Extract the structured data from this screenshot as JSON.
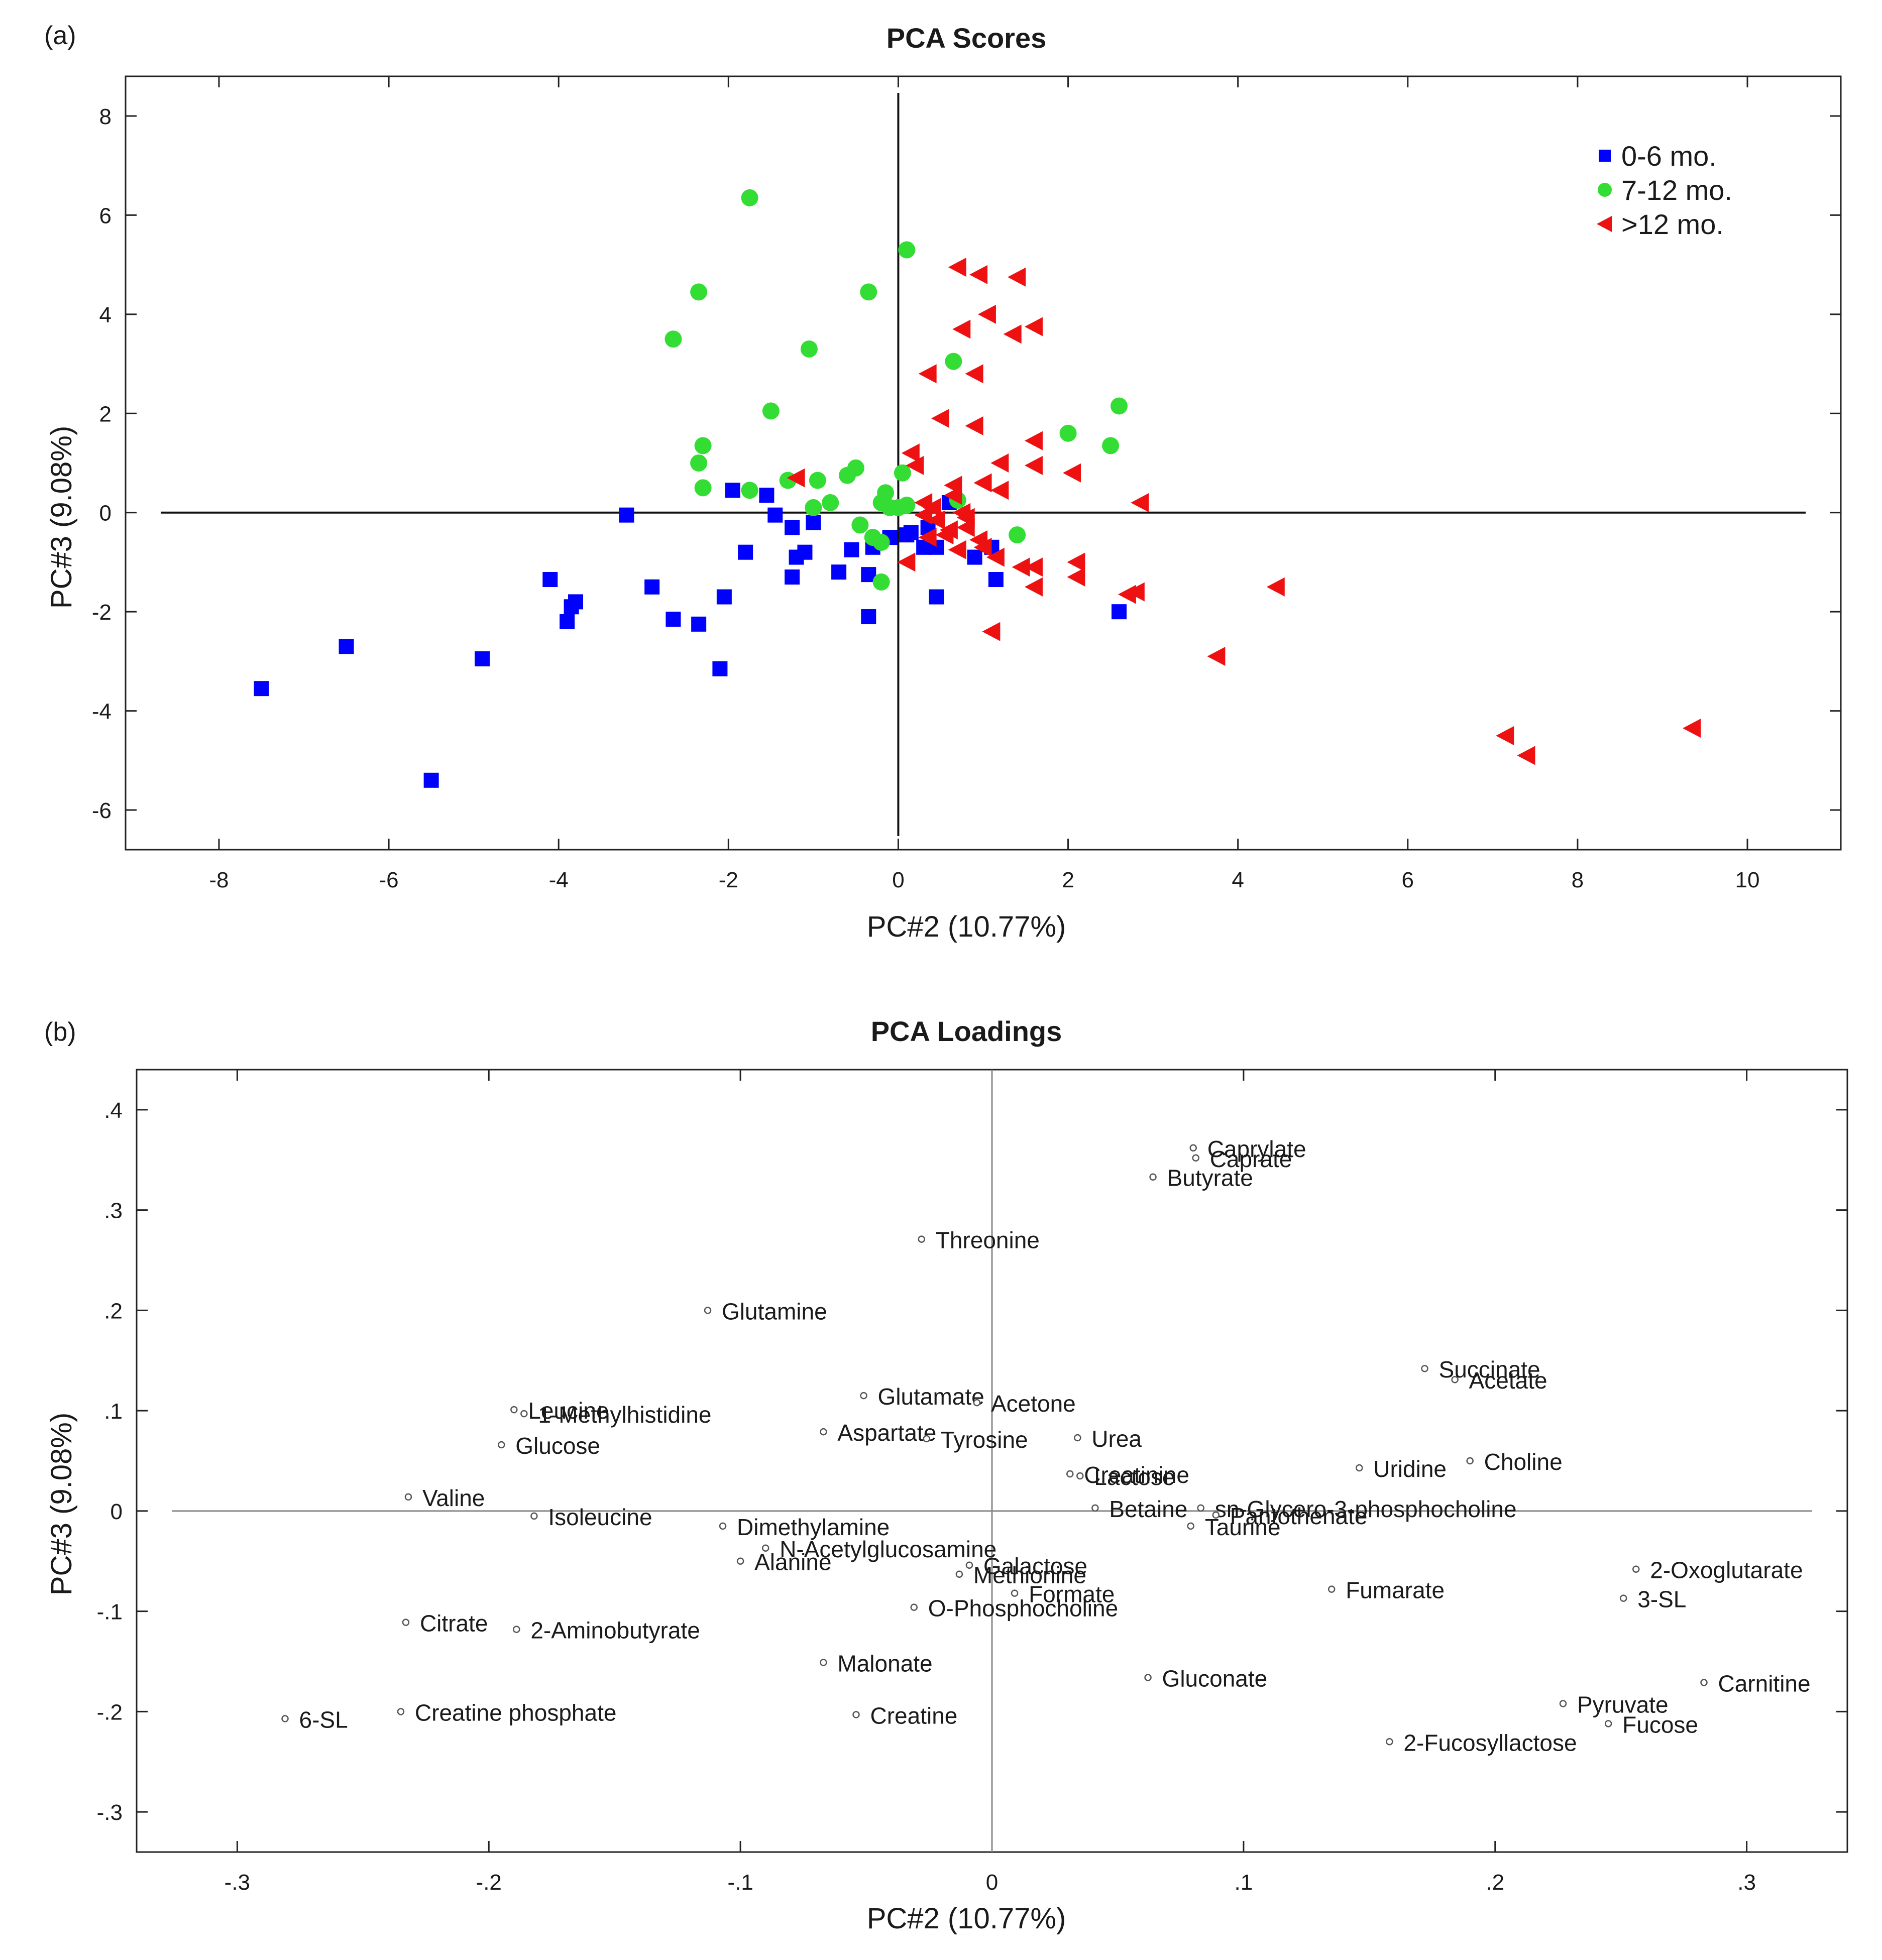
{
  "figure": {
    "panel_a_label": "(a)",
    "panel_b_label": "(b)"
  },
  "chart_data": [
    {
      "type": "scatter",
      "title": "PCA Scores",
      "xlabel": "PC#2 (10.77%)",
      "ylabel": "PC#3 (9.08%)",
      "xlim": [
        -9.1,
        11.1
      ],
      "ylim": [
        -6.8,
        8.8
      ],
      "xticks": [
        -8,
        -6,
        -4,
        -2,
        0,
        2,
        4,
        6,
        8,
        10
      ],
      "yticks": [
        -6,
        -4,
        -2,
        0,
        2,
        4,
        6,
        8
      ],
      "legend_position": "top-right",
      "series": [
        {
          "name": "0-6 mo.",
          "color": "#0000ff",
          "marker": "square",
          "points": [
            [
              -7.5,
              -3.55
            ],
            [
              -6.5,
              -2.7
            ],
            [
              -5.5,
              -5.4
            ],
            [
              -4.9,
              -2.95
            ],
            [
              -4.1,
              -1.35
            ],
            [
              -3.9,
              -2.2
            ],
            [
              -3.85,
              -1.9
            ],
            [
              -3.8,
              -1.8
            ],
            [
              -3.2,
              -0.05
            ],
            [
              -2.9,
              -1.5
            ],
            [
              -2.65,
              -2.15
            ],
            [
              -2.35,
              -2.25
            ],
            [
              -2.1,
              -3.15
            ],
            [
              -2.05,
              -1.7
            ],
            [
              -1.95,
              0.45
            ],
            [
              -1.8,
              -0.8
            ],
            [
              -1.55,
              0.35
            ],
            [
              -1.45,
              -0.05
            ],
            [
              -1.25,
              -1.3
            ],
            [
              -1.25,
              -0.3
            ],
            [
              -1.2,
              -0.9
            ],
            [
              -1.1,
              -0.8
            ],
            [
              -1.0,
              -0.2
            ],
            [
              -0.7,
              -1.2
            ],
            [
              -0.55,
              -0.75
            ],
            [
              -0.35,
              -1.25
            ],
            [
              -0.35,
              -2.1
            ],
            [
              -0.3,
              -0.7
            ],
            [
              -0.1,
              -0.5
            ],
            [
              0.1,
              -0.45
            ],
            [
              0.15,
              -0.4
            ],
            [
              0.3,
              -0.7
            ],
            [
              0.35,
              -0.3
            ],
            [
              0.45,
              -0.7
            ],
            [
              0.45,
              -1.7
            ],
            [
              0.6,
              0.2
            ],
            [
              0.9,
              -0.9
            ],
            [
              1.1,
              -0.7
            ],
            [
              1.15,
              -1.35
            ],
            [
              2.6,
              -2.0
            ]
          ]
        },
        {
          "name": "7-12 mo.",
          "color": "#33dd33",
          "marker": "circle",
          "points": [
            [
              -2.65,
              3.5
            ],
            [
              -2.35,
              4.45
            ],
            [
              -2.3,
              1.35
            ],
            [
              -2.35,
              1.0
            ],
            [
              -2.3,
              0.5
            ],
            [
              -1.75,
              6.35
            ],
            [
              -1.75,
              0.45
            ],
            [
              -1.5,
              2.05
            ],
            [
              -1.3,
              0.65
            ],
            [
              -1.05,
              3.3
            ],
            [
              -1.0,
              0.1
            ],
            [
              -0.95,
              0.65
            ],
            [
              -0.8,
              0.2
            ],
            [
              -0.6,
              0.75
            ],
            [
              -0.5,
              0.9
            ],
            [
              -0.45,
              -0.25
            ],
            [
              -0.35,
              4.45
            ],
            [
              -0.3,
              -0.5
            ],
            [
              -0.2,
              -0.6
            ],
            [
              -0.2,
              -1.4
            ],
            [
              -0.2,
              0.2
            ],
            [
              -0.15,
              0.4
            ],
            [
              -0.1,
              0.1
            ],
            [
              0.0,
              0.1
            ],
            [
              0.05,
              0.8
            ],
            [
              0.1,
              5.3
            ],
            [
              0.1,
              0.15
            ],
            [
              0.65,
              3.05
            ],
            [
              0.7,
              0.25
            ],
            [
              1.4,
              -0.45
            ],
            [
              2.0,
              1.6
            ],
            [
              2.5,
              1.35
            ],
            [
              2.6,
              2.15
            ]
          ]
        },
        {
          "name": ">12 mo.",
          "color": "#ee1111",
          "marker": "triangle-left",
          "points": [
            [
              -1.2,
              0.7
            ],
            [
              0.1,
              -1.0
            ],
            [
              0.15,
              1.2
            ],
            [
              0.2,
              0.95
            ],
            [
              0.3,
              0.2
            ],
            [
              0.3,
              -0.05
            ],
            [
              0.35,
              2.8
            ],
            [
              0.35,
              -0.5
            ],
            [
              0.4,
              0.1
            ],
            [
              0.45,
              -0.15
            ],
            [
              0.5,
              1.9
            ],
            [
              0.55,
              -0.45
            ],
            [
              0.6,
              -0.35
            ],
            [
              0.65,
              0.55
            ],
            [
              0.65,
              0.35
            ],
            [
              0.7,
              -0.75
            ],
            [
              0.7,
              4.95
            ],
            [
              0.75,
              3.7
            ],
            [
              0.75,
              0.0
            ],
            [
              0.8,
              -0.1
            ],
            [
              0.8,
              -0.3
            ],
            [
              0.9,
              2.8
            ],
            [
              0.9,
              1.75
            ],
            [
              0.95,
              4.8
            ],
            [
              0.95,
              -0.55
            ],
            [
              1.0,
              0.6
            ],
            [
              1.0,
              -0.7
            ],
            [
              1.05,
              4.0
            ],
            [
              1.1,
              -2.4
            ],
            [
              1.15,
              -0.9
            ],
            [
              1.2,
              1.0
            ],
            [
              1.2,
              0.45
            ],
            [
              1.35,
              3.6
            ],
            [
              1.4,
              4.75
            ],
            [
              1.45,
              -1.1
            ],
            [
              1.6,
              3.75
            ],
            [
              1.6,
              1.45
            ],
            [
              1.6,
              0.95
            ],
            [
              1.6,
              -1.1
            ],
            [
              1.6,
              -1.5
            ],
            [
              2.05,
              0.8
            ],
            [
              2.1,
              -1.0
            ],
            [
              2.1,
              -1.3
            ],
            [
              2.7,
              -1.65
            ],
            [
              2.8,
              -1.6
            ],
            [
              2.85,
              0.2
            ],
            [
              3.75,
              -2.9
            ],
            [
              4.45,
              -1.5
            ],
            [
              7.15,
              -4.5
            ],
            [
              7.4,
              -4.9
            ],
            [
              9.35,
              -4.35
            ]
          ]
        }
      ]
    },
    {
      "type": "scatter",
      "title": "PCA Loadings",
      "xlabel": "PC#2 (10.77%)",
      "ylabel": "PC#3 (9.08%)",
      "xlim": [
        -0.34,
        0.34
      ],
      "ylim": [
        -0.34,
        0.44
      ],
      "xticks": [
        -0.3,
        -0.2,
        -0.1,
        0,
        0.1,
        0.2,
        0.3
      ],
      "yticks": [
        -0.3,
        -0.2,
        -0.1,
        0,
        0.1,
        0.2,
        0.3,
        0.4
      ],
      "points": [
        {
          "label": "Caprylate",
          "x": 0.08,
          "y": 0.362
        },
        {
          "label": "Caprate",
          "x": 0.081,
          "y": 0.352
        },
        {
          "label": "Butyrate",
          "x": 0.064,
          "y": 0.333
        },
        {
          "label": "Threonine",
          "x": -0.028,
          "y": 0.271
        },
        {
          "label": "Glutamine",
          "x": -0.113,
          "y": 0.2
        },
        {
          "label": "Succinate",
          "x": 0.172,
          "y": 0.142
        },
        {
          "label": "Acetate",
          "x": 0.184,
          "y": 0.131
        },
        {
          "label": "Glutamate",
          "x": -0.051,
          "y": 0.115
        },
        {
          "label": "Acetone",
          "x": -0.006,
          "y": 0.108
        },
        {
          "label": "Leucine",
          "x": -0.19,
          "y": 0.101
        },
        {
          "label": "1-Methylhistidine",
          "x": -0.186,
          "y": 0.097
        },
        {
          "label": "Aspartate",
          "x": -0.067,
          "y": 0.079
        },
        {
          "label": "Tyrosine",
          "x": -0.026,
          "y": 0.072
        },
        {
          "label": "Urea",
          "x": 0.034,
          "y": 0.073
        },
        {
          "label": "Glucose",
          "x": -0.195,
          "y": 0.066
        },
        {
          "label": "Choline",
          "x": 0.19,
          "y": 0.05
        },
        {
          "label": "Uridine",
          "x": 0.146,
          "y": 0.043
        },
        {
          "label": "Creatinine",
          "x": 0.031,
          "y": 0.037
        },
        {
          "label": "Lactose",
          "x": 0.035,
          "y": 0.035
        },
        {
          "label": "Valine",
          "x": -0.232,
          "y": 0.014
        },
        {
          "label": "Betaine",
          "x": 0.041,
          "y": 0.003
        },
        {
          "label": "sn-Glycero-3-phosphocholine",
          "x": 0.083,
          "y": 0.003
        },
        {
          "label": "Pantothenate",
          "x": 0.089,
          "y": -0.004
        },
        {
          "label": "Taurine",
          "x": 0.079,
          "y": -0.015
        },
        {
          "label": "Isoleucine",
          "x": -0.182,
          "y": -0.005
        },
        {
          "label": "Dimethylamine",
          "x": -0.107,
          "y": -0.015
        },
        {
          "label": "N-Acetylglucosamine",
          "x": -0.09,
          "y": -0.037
        },
        {
          "label": "Alanine",
          "x": -0.1,
          "y": -0.05
        },
        {
          "label": "Galactose",
          "x": -0.009,
          "y": -0.054
        },
        {
          "label": "Methionine",
          "x": -0.013,
          "y": -0.063
        },
        {
          "label": "Formate",
          "x": 0.009,
          "y": -0.082
        },
        {
          "label": "O-Phosphocholine",
          "x": -0.031,
          "y": -0.096
        },
        {
          "label": "Fumarate",
          "x": 0.135,
          "y": -0.078
        },
        {
          "label": "2-Oxoglutarate",
          "x": 0.256,
          "y": -0.058
        },
        {
          "label": "3-SL",
          "x": 0.251,
          "y": -0.087
        },
        {
          "label": "Citrate",
          "x": -0.233,
          "y": -0.111
        },
        {
          "label": "2-Aminobutyrate",
          "x": -0.189,
          "y": -0.118
        },
        {
          "label": "Malonate",
          "x": -0.067,
          "y": -0.151
        },
        {
          "label": "Gluconate",
          "x": 0.062,
          "y": -0.166
        },
        {
          "label": "Carnitine",
          "x": 0.283,
          "y": -0.171
        },
        {
          "label": "Creatine",
          "x": -0.054,
          "y": -0.203
        },
        {
          "label": "Creatine phosphate",
          "x": -0.235,
          "y": -0.2
        },
        {
          "label": "6-SL",
          "x": -0.281,
          "y": -0.207
        },
        {
          "label": "Pyruvate",
          "x": 0.227,
          "y": -0.192
        },
        {
          "label": "Fucose",
          "x": 0.245,
          "y": -0.212
        },
        {
          "label": "2-Fucosyllactose",
          "x": 0.158,
          "y": -0.23
        }
      ]
    }
  ]
}
